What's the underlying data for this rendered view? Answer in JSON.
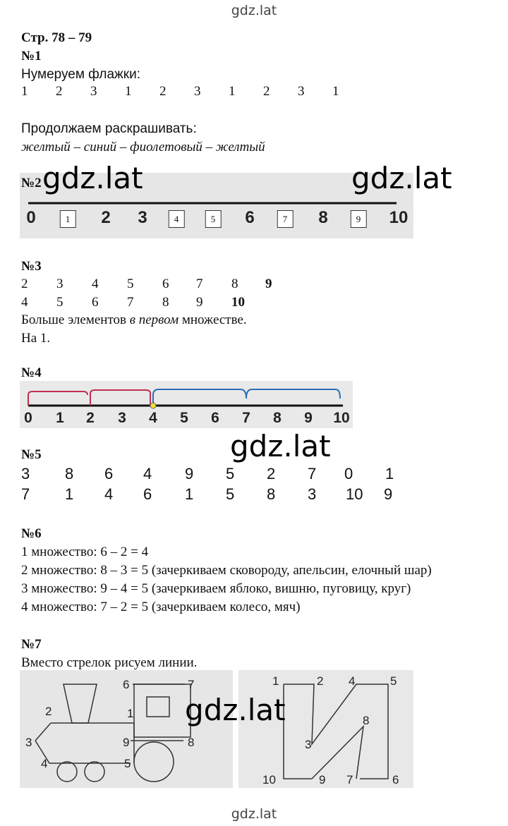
{
  "header": {
    "watermark": "gdz.lat",
    "page": "Стр. 78 – 79"
  },
  "task1": {
    "number": "№1",
    "line1": "Нумеруем флажки:",
    "flags": [
      1,
      2,
      3,
      1,
      2,
      3,
      1,
      2,
      3,
      1
    ],
    "line2": "Продолжаем раскрашивать:",
    "colors": "желтый – синий – фиолетовый – желтый"
  },
  "task2": {
    "number": "№2",
    "scale": [
      0,
      1,
      2,
      3,
      4,
      5,
      6,
      7,
      8,
      9,
      10
    ],
    "boxed": [
      false,
      true,
      false,
      false,
      true,
      true,
      false,
      true,
      false,
      true,
      false
    ]
  },
  "task3": {
    "number": "№3",
    "row1": [
      2,
      3,
      4,
      5,
      6,
      7,
      8,
      9
    ],
    "row2": [
      4,
      5,
      6,
      7,
      8,
      9,
      10
    ],
    "text": [
      "Больше элементов ",
      "в первом",
      " множестве."
    ],
    "answer": "На 1."
  },
  "task4": {
    "number": "№4",
    "scale": [
      0,
      1,
      2,
      3,
      4,
      5,
      6,
      7,
      8,
      9,
      10
    ]
  },
  "task5": {
    "number": "№5",
    "row1": [
      3,
      8,
      6,
      4,
      9,
      5,
      2,
      7,
      0,
      1
    ],
    "row2": [
      7,
      1,
      4,
      6,
      1,
      5,
      8,
      3,
      10,
      9
    ]
  },
  "task6": {
    "number": "№6",
    "lines": [
      "1 множество: 6 – 2 = 4",
      "2 множество: 8 – 3 = 5 (зачеркиваем сковороду, апельсин, елочный шар)",
      "3 множество: 9 – 4 = 5 (зачеркиваем яблоко, вишню, пуговицу, круг)",
      "4 множество: 7 – 2 = 5 (зачеркиваем колесо, мяч)"
    ]
  },
  "task7": {
    "number": "№7",
    "text": "Вместо стрелок рисуем линии.",
    "train": [
      1,
      2,
      3,
      4,
      5,
      6,
      7,
      8,
      9
    ],
    "figure": [
      1,
      2,
      3,
      4,
      5,
      6,
      7,
      8,
      9,
      10
    ]
  },
  "overlay": [
    "gdz.lat",
    "gdz.lat",
    "gdz.lat",
    "gdz.lat"
  ],
  "footer": {
    "watermark": "gdz.lat"
  }
}
